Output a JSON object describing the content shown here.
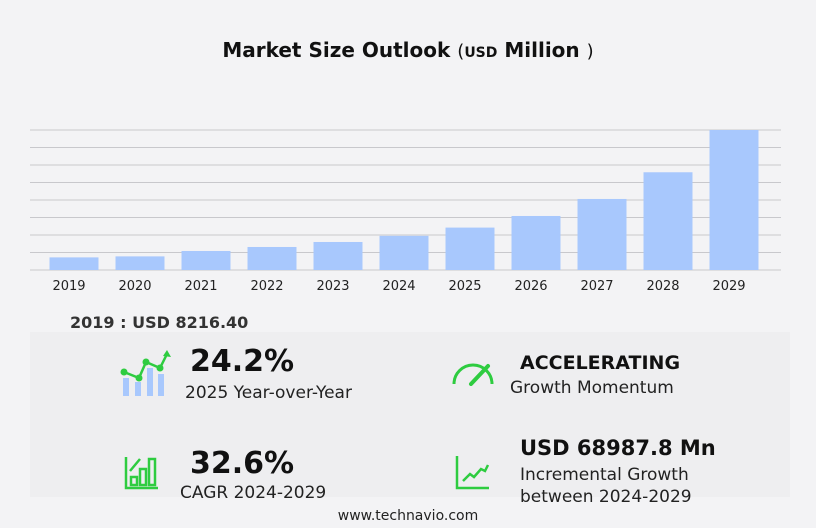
{
  "title": {
    "main": "Market Size Outlook",
    "open": "(",
    "unit": "USD",
    "unit_label": "Million",
    "close": ")"
  },
  "chart_data": {
    "type": "bar",
    "title": "Market Size Outlook (USD Million)",
    "categories": [
      "2019",
      "2020",
      "2021",
      "2022",
      "2023",
      "2024",
      "2025",
      "2026",
      "2027",
      "2028",
      "2029"
    ],
    "values": [
      8216.4,
      8870,
      12390,
      15000,
      18260,
      22254,
      27640,
      35200,
      46300,
      63700,
      91242
    ],
    "ylim": [
      0,
      91242
    ],
    "grid": true,
    "bar_color": "#a8c8fd"
  },
  "base_label": "2019 : USD  8216.40",
  "stats": {
    "yoy": {
      "value": "24.2%",
      "label": "2025 Year-over-Year"
    },
    "momentum": {
      "value": "ACCELERATING",
      "label": "Growth Momentum"
    },
    "cagr": {
      "value": "32.6%",
      "label": "CAGR 2024-2029"
    },
    "incremental": {
      "value": "USD 68987.8 Mn",
      "label1": "Incremental Growth",
      "label2": "between 2024-2029"
    }
  },
  "footer": "www.technavio.com",
  "colors": {
    "accent": "#2ecc40",
    "bar": "#a8c8fd"
  }
}
